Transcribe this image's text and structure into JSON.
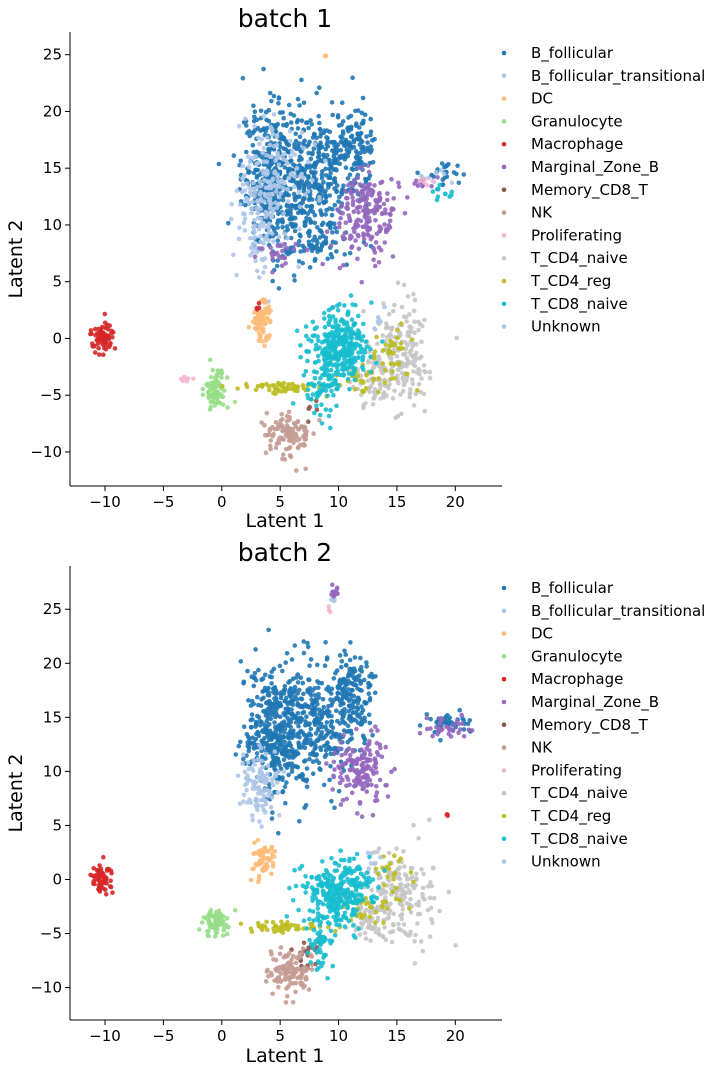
{
  "chart_data": [
    {
      "type": "scatter",
      "title": "batch 1",
      "xlabel": "Latent 1",
      "ylabel": "Latent 2",
      "xlim": [
        -13,
        24
      ],
      "ylim": [
        -13,
        27
      ],
      "xticks": [
        -10,
        -5,
        0,
        5,
        10,
        15,
        20
      ],
      "yticks": [
        -10,
        -5,
        0,
        5,
        10,
        15,
        20,
        25
      ],
      "grid": false,
      "legend": "outside-right",
      "series": [
        {
          "name": "B_follicular",
          "color": "#1f77b4",
          "clusters": [
            {
              "cx": 4.3,
              "cy": 14.2,
              "sx": 1.3,
              "sy": 3.2,
              "n": 380
            },
            {
              "cx": 7.8,
              "cy": 14.4,
              "sx": 1.7,
              "sy": 3.0,
              "n": 320
            },
            {
              "cx": 11.2,
              "cy": 16.0,
              "sx": 1.0,
              "sy": 2.2,
              "n": 150
            },
            {
              "cx": 8.2,
              "cy": 8.4,
              "sx": 1.5,
              "sy": 1.1,
              "n": 70
            },
            {
              "cx": 19.0,
              "cy": 14.5,
              "sx": 1.2,
              "sy": 0.6,
              "n": 25
            }
          ]
        },
        {
          "name": "B_follicular_transitional",
          "color": "#aec7e8",
          "clusters": [
            {
              "cx": 3.2,
              "cy": 11.5,
              "sx": 1.0,
              "sy": 3.0,
              "n": 140
            },
            {
              "cx": 5.2,
              "cy": 14.8,
              "sx": 1.5,
              "sy": 2.5,
              "n": 90
            },
            {
              "cx": 18.5,
              "cy": 14.4,
              "sx": 1.0,
              "sy": 0.5,
              "n": 8
            }
          ]
        },
        {
          "name": "DC",
          "color": "#ffbb78",
          "clusters": [
            {
              "cx": 3.4,
              "cy": 1.4,
              "sx": 0.45,
              "sy": 0.9,
              "n": 70
            },
            {
              "cx": 8.9,
              "cy": 24.9,
              "sx": 0.05,
              "sy": 0.05,
              "n": 2
            }
          ]
        },
        {
          "name": "Granulocyte",
          "color": "#98df8a",
          "clusters": [
            {
              "cx": -0.5,
              "cy": -4.5,
              "sx": 0.45,
              "sy": 0.8,
              "n": 80
            }
          ]
        },
        {
          "name": "Macrophage",
          "color": "#d62728",
          "clusters": [
            {
              "cx": -10.2,
              "cy": 0.2,
              "sx": 0.45,
              "sy": 0.65,
              "n": 70
            },
            {
              "cx": 3.1,
              "cy": 2.8,
              "sx": 0.2,
              "sy": 0.2,
              "n": 4
            }
          ]
        },
        {
          "name": "Marginal_Zone_B",
          "color": "#9467bd",
          "clusters": [
            {
              "cx": 12.5,
              "cy": 10.8,
              "sx": 1.3,
              "sy": 1.8,
              "n": 190
            },
            {
              "cx": 5.0,
              "cy": 7.5,
              "sx": 1.2,
              "sy": 0.6,
              "n": 25
            },
            {
              "cx": 17.0,
              "cy": 13.6,
              "sx": 0.6,
              "sy": 0.3,
              "n": 8
            }
          ]
        },
        {
          "name": "Memory_CD8_T",
          "color": "#8c564b",
          "clusters": [
            {
              "cx": 7.5,
              "cy": -6.0,
              "sx": 0.4,
              "sy": 0.5,
              "n": 6
            }
          ]
        },
        {
          "name": "NK",
          "color": "#c49c94",
          "clusters": [
            {
              "cx": 5.8,
              "cy": -8.3,
              "sx": 1.0,
              "sy": 1.1,
              "n": 110
            }
          ]
        },
        {
          "name": "Proliferating",
          "color": "#f7b6d2",
          "clusters": [
            {
              "cx": -3.0,
              "cy": -3.6,
              "sx": 0.3,
              "sy": 0.15,
              "n": 8
            },
            {
              "cx": 17.5,
              "cy": 13.8,
              "sx": 0.4,
              "sy": 0.3,
              "n": 5
            }
          ]
        },
        {
          "name": "T_CD4_naive",
          "color": "#c7c7c7",
          "clusters": [
            {
              "cx": 15.2,
              "cy": -1.5,
              "sx": 1.3,
              "sy": 2.2,
              "n": 190
            },
            {
              "cx": 12.8,
              "cy": -3.5,
              "sx": 0.9,
              "sy": 1.2,
              "n": 60
            }
          ]
        },
        {
          "name": "T_CD4_reg",
          "color": "#bcbd22",
          "clusters": [
            {
              "cx": 5.5,
              "cy": -4.3,
              "sx": 1.8,
              "sy": 0.25,
              "n": 55
            },
            {
              "cx": 12.0,
              "cy": -3.5,
              "sx": 1.5,
              "sy": 0.8,
              "n": 35
            },
            {
              "cx": 14.8,
              "cy": -1.0,
              "sx": 1.0,
              "sy": 1.2,
              "n": 30
            }
          ]
        },
        {
          "name": "T_CD8_naive",
          "color": "#17becf",
          "clusters": [
            {
              "cx": 10.2,
              "cy": -0.8,
              "sx": 1.3,
              "sy": 1.6,
              "n": 320
            },
            {
              "cx": 8.5,
              "cy": -4.5,
              "sx": 0.8,
              "sy": 1.5,
              "n": 60
            },
            {
              "cx": 18.8,
              "cy": 13.0,
              "sx": 0.5,
              "sy": 0.5,
              "n": 10
            }
          ]
        },
        {
          "name": "Unknown",
          "color": "#aec7e8",
          "clusters": [
            {
              "cx": 13.5,
              "cy": 1.5,
              "sx": 0.6,
              "sy": 0.8,
              "n": 6
            }
          ]
        }
      ]
    },
    {
      "type": "scatter",
      "title": "batch 2",
      "xlabel": "Latent 1",
      "ylabel": "Latent 2",
      "xlim": [
        -13,
        24
      ],
      "ylim": [
        -13,
        29
      ],
      "xticks": [
        -10,
        -5,
        0,
        5,
        10,
        15,
        20
      ],
      "yticks": [
        -10,
        -5,
        0,
        5,
        10,
        15,
        20,
        25
      ],
      "grid": false,
      "legend": "outside-right",
      "series": [
        {
          "name": "B_follicular",
          "color": "#1f77b4",
          "clusters": [
            {
              "cx": 4.5,
              "cy": 13.5,
              "sx": 1.4,
              "sy": 2.8,
              "n": 360
            },
            {
              "cx": 8.0,
              "cy": 14.8,
              "sx": 1.8,
              "sy": 2.8,
              "n": 320
            },
            {
              "cx": 11.2,
              "cy": 16.8,
              "sx": 1.0,
              "sy": 2.0,
              "n": 150
            },
            {
              "cx": 19.5,
              "cy": 14.5,
              "sx": 1.0,
              "sy": 0.5,
              "n": 40
            }
          ]
        },
        {
          "name": "B_follicular_transitional",
          "color": "#aec7e8",
          "clusters": [
            {
              "cx": 3.2,
              "cy": 8.8,
              "sx": 0.9,
              "sy": 1.5,
              "n": 100
            },
            {
              "cx": 9.5,
              "cy": 26.3,
              "sx": 0.15,
              "sy": 0.3,
              "n": 6
            }
          ]
        },
        {
          "name": "DC",
          "color": "#ffbb78",
          "clusters": [
            {
              "cx": 3.5,
              "cy": 1.8,
              "sx": 0.5,
              "sy": 0.9,
              "n": 55
            }
          ]
        },
        {
          "name": "Granulocyte",
          "color": "#98df8a",
          "clusters": [
            {
              "cx": -0.5,
              "cy": -3.9,
              "sx": 0.6,
              "sy": 0.6,
              "n": 80
            }
          ]
        },
        {
          "name": "Macrophage",
          "color": "#d62728",
          "clusters": [
            {
              "cx": -10.2,
              "cy": 0.0,
              "sx": 0.45,
              "sy": 0.6,
              "n": 65
            },
            {
              "cx": 19.3,
              "cy": 6.0,
              "sx": 0.05,
              "sy": 0.05,
              "n": 3
            }
          ]
        },
        {
          "name": "Marginal_Zone_B",
          "color": "#9467bd",
          "clusters": [
            {
              "cx": 12.0,
              "cy": 10.3,
              "sx": 1.1,
              "sy": 1.6,
              "n": 150
            },
            {
              "cx": 19.5,
              "cy": 14.0,
              "sx": 1.0,
              "sy": 0.5,
              "n": 35
            },
            {
              "cx": 9.6,
              "cy": 26.7,
              "sx": 0.2,
              "sy": 0.3,
              "n": 12
            }
          ]
        },
        {
          "name": "Memory_CD8_T",
          "color": "#8c564b",
          "clusters": [
            {
              "cx": 7.5,
              "cy": -6.8,
              "sx": 0.6,
              "sy": 0.8,
              "n": 22
            }
          ]
        },
        {
          "name": "NK",
          "color": "#c49c94",
          "clusters": [
            {
              "cx": 6.0,
              "cy": -8.5,
              "sx": 1.0,
              "sy": 1.0,
              "n": 110
            }
          ]
        },
        {
          "name": "Proliferating",
          "color": "#f7b6d2",
          "clusters": [
            {
              "cx": 9.3,
              "cy": 25.0,
              "sx": 0.1,
              "sy": 0.2,
              "n": 3
            }
          ]
        },
        {
          "name": "T_CD4_naive",
          "color": "#c7c7c7",
          "clusters": [
            {
              "cx": 15.0,
              "cy": -1.5,
              "sx": 1.5,
              "sy": 2.0,
              "n": 190
            },
            {
              "cx": 12.5,
              "cy": -3.8,
              "sx": 0.9,
              "sy": 1.0,
              "n": 50
            }
          ]
        },
        {
          "name": "T_CD4_reg",
          "color": "#bcbd22",
          "clusters": [
            {
              "cx": 5.5,
              "cy": -4.4,
              "sx": 1.8,
              "sy": 0.25,
              "n": 50
            },
            {
              "cx": 12.5,
              "cy": -3.0,
              "sx": 1.5,
              "sy": 1.0,
              "n": 30
            },
            {
              "cx": 14.5,
              "cy": 0.5,
              "sx": 1.0,
              "sy": 1.0,
              "n": 20
            }
          ]
        },
        {
          "name": "T_CD8_naive",
          "color": "#17becf",
          "clusters": [
            {
              "cx": 10.0,
              "cy": -1.3,
              "sx": 1.5,
              "sy": 1.6,
              "n": 300
            },
            {
              "cx": 8.3,
              "cy": -5.5,
              "sx": 0.6,
              "sy": 1.5,
              "n": 50
            }
          ]
        },
        {
          "name": "Unknown",
          "color": "#aec7e8",
          "clusters": [
            {
              "cx": 13.0,
              "cy": 2.0,
              "sx": 0.6,
              "sy": 0.7,
              "n": 6
            }
          ]
        }
      ]
    }
  ]
}
